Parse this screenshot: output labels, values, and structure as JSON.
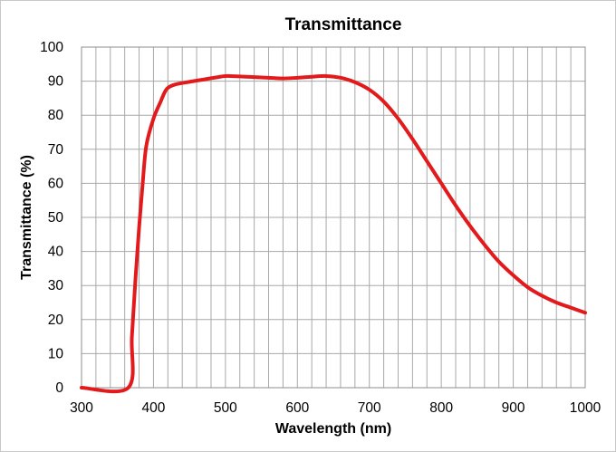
{
  "chart_data": {
    "type": "line",
    "title": "Transmittance",
    "xlabel": "Wavelength (nm)",
    "ylabel": "Transmittance (%)",
    "xlim": [
      300,
      1000
    ],
    "ylim": [
      0,
      100
    ],
    "x_ticks": [
      300,
      400,
      500,
      600,
      700,
      800,
      900,
      1000
    ],
    "y_ticks": [
      0,
      10,
      20,
      30,
      40,
      50,
      60,
      70,
      80,
      90,
      100
    ],
    "x_minor_step": 20,
    "grid": true,
    "legend": "none",
    "series": [
      {
        "color": "#e31a1c",
        "points": [
          [
            300,
            0
          ],
          [
            365,
            0
          ],
          [
            370,
            15
          ],
          [
            375,
            32
          ],
          [
            380,
            47
          ],
          [
            385,
            60
          ],
          [
            390,
            71
          ],
          [
            400,
            79
          ],
          [
            410,
            84
          ],
          [
            415,
            86.5
          ],
          [
            420,
            88
          ],
          [
            430,
            89
          ],
          [
            450,
            89.8
          ],
          [
            470,
            90.5
          ],
          [
            490,
            91.2
          ],
          [
            500,
            91.5
          ],
          [
            520,
            91.4
          ],
          [
            540,
            91.2
          ],
          [
            560,
            91
          ],
          [
            580,
            90.8
          ],
          [
            600,
            91
          ],
          [
            620,
            91.3
          ],
          [
            640,
            91.5
          ],
          [
            660,
            91
          ],
          [
            680,
            89.7
          ],
          [
            700,
            87.5
          ],
          [
            720,
            84
          ],
          [
            740,
            79
          ],
          [
            760,
            73
          ],
          [
            780,
            66.5
          ],
          [
            800,
            60
          ],
          [
            820,
            53.5
          ],
          [
            840,
            47.5
          ],
          [
            860,
            42
          ],
          [
            880,
            37
          ],
          [
            900,
            33
          ],
          [
            920,
            29.5
          ],
          [
            940,
            27
          ],
          [
            960,
            25
          ],
          [
            980,
            23.5
          ],
          [
            1000,
            22
          ]
        ]
      }
    ]
  }
}
